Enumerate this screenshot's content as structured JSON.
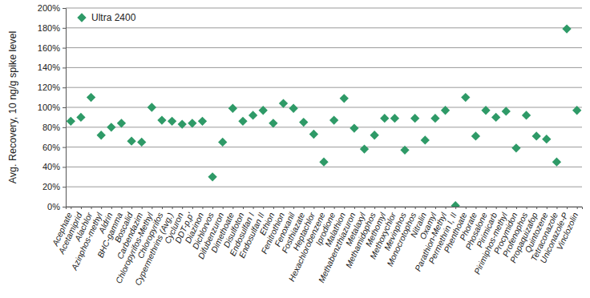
{
  "chart_data": {
    "type": "scatter",
    "y_label": "Avg. Recovery, 10 ng/g spike level",
    "categories": [
      "Acephate",
      "Acetamiprid",
      "Alachlor",
      "Azinphos-methyl",
      "Aldrin",
      "BHC-gamma",
      "Boscalid",
      "Carbendazim",
      "Chloropyrifos-Methyl",
      "Chloropyrifos",
      "Cypermethrins (Avg.)",
      "Cycluron",
      "DDT-p,p'",
      "Diazinon",
      "Dichlorvos",
      "Difubenzuron",
      "Dimethoate",
      "Disulfoton",
      "Endosulfan I",
      "Endosulfan II",
      "Ethion",
      "Fenitrothion",
      "Fenoxanil",
      "Fosthiazate",
      "Heptachlor",
      "Hexachlorobenzene",
      "Iprodione",
      "Malathion",
      "Methabenzthiazuron",
      "Metalaxyl",
      "Methamidophos",
      "Methomyl",
      "Methoxychlor",
      "Mevinphos",
      "Monocrotophos",
      "Nitralin",
      "Oxamyl",
      "Parathion-Methyl",
      "Permethrin I, II",
      "Phenthoate",
      "Phorate",
      "Phosalone",
      "Pirimicarb",
      "Pirimiphos-methyl",
      "Procymidon",
      "Profenophos",
      "Propaquizafop",
      "Quintozene",
      "Tetraconazole",
      "Uniconazole-P",
      "Vinclozolin"
    ],
    "series": [
      {
        "name": "Ultra 2400",
        "color": "#2e9a67",
        "marker": "diamond",
        "values": [
          86,
          90,
          110,
          72,
          80,
          84,
          66,
          65,
          100,
          87,
          86,
          83,
          84,
          86,
          30,
          65,
          99,
          86,
          92,
          97,
          84,
          104,
          99,
          85,
          73,
          45,
          87,
          109,
          79,
          58,
          72,
          89,
          89,
          57,
          89,
          67,
          89,
          97,
          1,
          110,
          71,
          97,
          90,
          96,
          59,
          92,
          71,
          68,
          45,
          179,
          97
        ]
      }
    ],
    "ylim": [
      0,
      200
    ],
    "yticks": [
      {
        "value": 0,
        "label": "0%"
      },
      {
        "value": 20,
        "label": "20%"
      },
      {
        "value": 40,
        "label": "40%"
      },
      {
        "value": 60,
        "label": "60%"
      },
      {
        "value": 80,
        "label": "80%"
      },
      {
        "value": 100,
        "label": "100%"
      },
      {
        "value": 120,
        "label": "120%"
      },
      {
        "value": 140,
        "label": "140%"
      },
      {
        "value": 160,
        "label": "160%"
      },
      {
        "value": 180,
        "label": "180%"
      },
      {
        "value": 200,
        "label": "200%"
      }
    ],
    "grid": true,
    "legend": "upper left"
  }
}
